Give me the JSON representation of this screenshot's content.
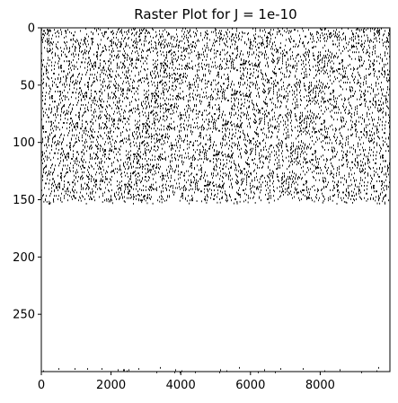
{
  "chart_data": {
    "type": "heatmap",
    "title": "Raster Plot for J = 1e-10",
    "xlabel": "",
    "ylabel": "",
    "x_range": [
      0,
      10000
    ],
    "y_range": [
      0,
      300
    ],
    "y_inverted": true,
    "grid": false,
    "legend": "none",
    "colors": {
      "spike": "#000000",
      "background": "#ffffff"
    },
    "x_ticks": [
      {
        "value": 0,
        "label": "0"
      },
      {
        "value": 2000,
        "label": "2000"
      },
      {
        "value": 4000,
        "label": "4000"
      },
      {
        "value": 6000,
        "label": "6000"
      },
      {
        "value": 8000,
        "label": "8000"
      }
    ],
    "y_ticks": [
      {
        "value": 0,
        "label": "0"
      },
      {
        "value": 50,
        "label": "50"
      },
      {
        "value": 100,
        "label": "100"
      },
      {
        "value": 150,
        "label": "150"
      },
      {
        "value": 200,
        "label": "200"
      },
      {
        "value": 250,
        "label": "250"
      }
    ],
    "regions": [
      {
        "neuron_range": [
          0,
          150
        ],
        "time_range": [
          0,
          10000
        ],
        "density": 0.11
      },
      {
        "neuron_range": [
          296,
          300
        ],
        "time_range": [
          0,
          10000
        ],
        "density": 0.015
      }
    ]
  }
}
